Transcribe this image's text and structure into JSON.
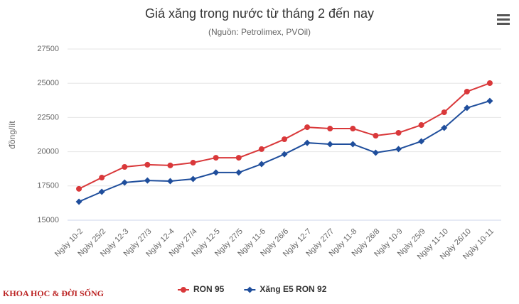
{
  "chart_data": {
    "type": "line",
    "title": "Giá xăng trong nước từ tháng 2 đến nay",
    "subtitle": "(Nguồn: Petrolimex, PVOil)",
    "y_label": "đồng/lít",
    "categories": [
      "Ngày 10-2",
      "Ngày 25/2",
      "Ngày 12-3",
      "Ngày 27/3",
      "Ngày 12-4",
      "Ngày 27/4",
      "Ngày 12-5",
      "Ngày 27/5",
      "Ngày 11-6",
      "Ngày 26/6",
      "Ngày 12-7",
      "Ngày 27/7",
      "Ngày 11-8",
      "Ngày 26/8",
      "Ngày 10-9",
      "Ngày 25/9",
      "Ngày 11-10",
      "Ngày 26/10",
      "Ngày 10-11"
    ],
    "series": [
      {
        "name": "RON 95",
        "color": "#d9383a",
        "marker": "circle",
        "values": [
          17290,
          18110,
          18890,
          19050,
          19000,
          19200,
          19560,
          19560,
          20190,
          20910,
          21790,
          21690,
          21690,
          21170,
          21380,
          21950,
          22880,
          24390,
          25010
        ]
      },
      {
        "name": "Xăng E5 RON 92",
        "color": "#1f4e9c",
        "marker": "diamond",
        "values": [
          16350,
          17075,
          17750,
          17900,
          17850,
          18010,
          18480,
          18480,
          19100,
          19820,
          20650,
          20550,
          20550,
          19930,
          20190,
          20760,
          21740,
          23200,
          23710
        ]
      }
    ],
    "ylim": [
      15000,
      27500
    ],
    "yticks": [
      15000,
      17500,
      20000,
      22500,
      25000,
      27500
    ],
    "grid": true,
    "legend": "bottom",
    "watermark": "KHOA HỌC & ĐỜI SỐNG"
  }
}
